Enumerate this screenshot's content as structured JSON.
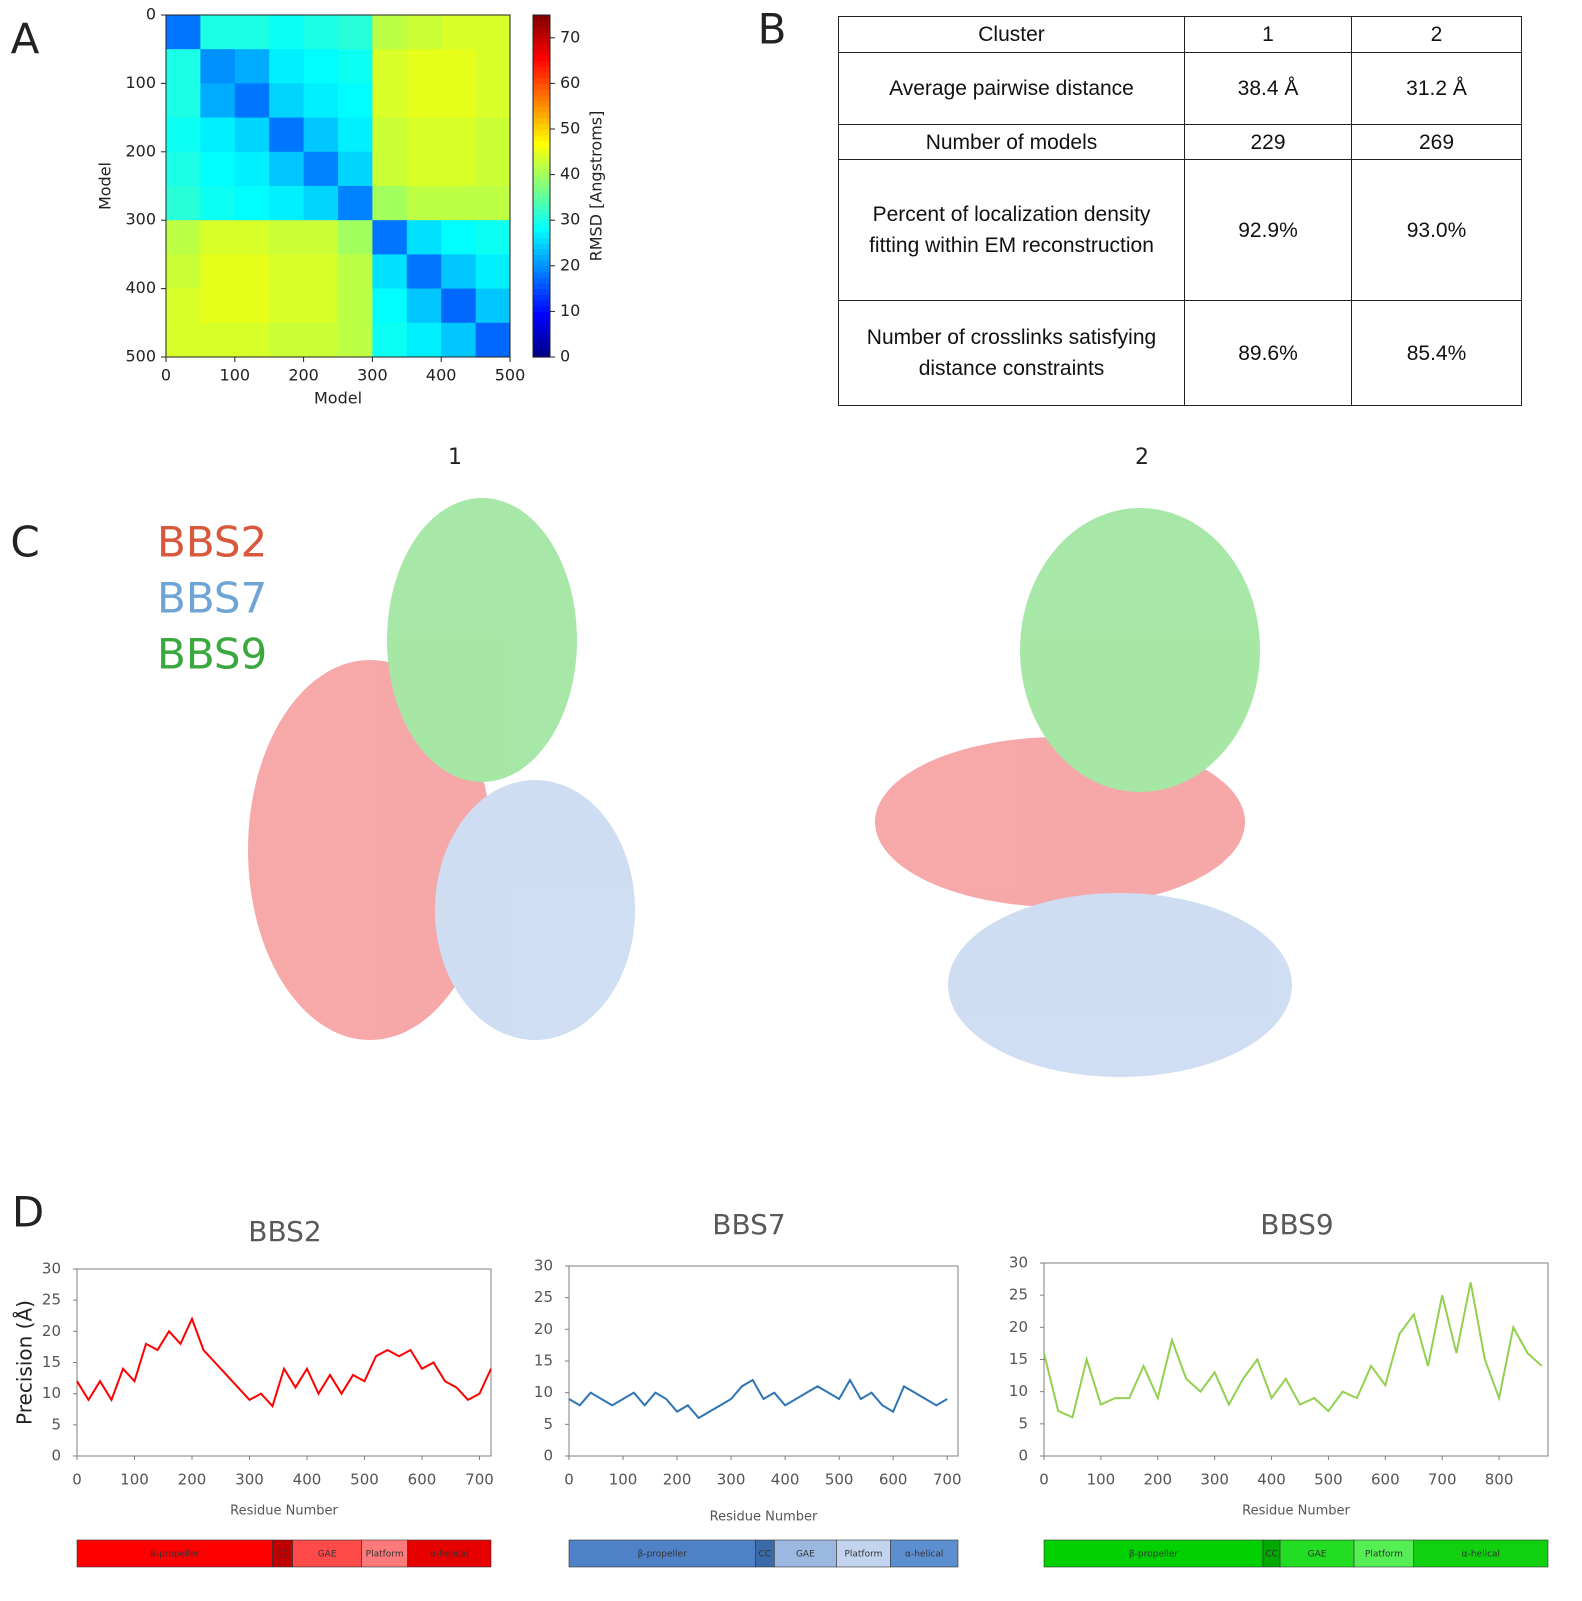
{
  "panel_labels": [
    "A",
    "B",
    "C",
    "D"
  ],
  "chart_data": [
    {
      "type": "heatmap",
      "xlabel": "Model",
      "ylabel": "Model",
      "xlim": [
        0,
        500
      ],
      "ylim": [
        0,
        500
      ],
      "xticks": [
        0,
        100,
        200,
        300,
        400,
        500
      ],
      "yticks": [
        0,
        100,
        200,
        300,
        400,
        500
      ],
      "colormap": "jet",
      "colorbar": {
        "label": "RMSD [Angstroms]",
        "lim": [
          0,
          75
        ],
        "ticks": [
          0,
          10,
          20,
          30,
          40,
          50,
          60,
          70
        ]
      },
      "z": [
        [
          18,
          30,
          30,
          29,
          30,
          31,
          42,
          43,
          44,
          44
        ],
        [
          30,
          20,
          22,
          27,
          28,
          29,
          44,
          45,
          45,
          44
        ],
        [
          30,
          22,
          18,
          25,
          27,
          28,
          44,
          45,
          45,
          44
        ],
        [
          29,
          27,
          25,
          18,
          24,
          27,
          43,
          44,
          44,
          43
        ],
        [
          30,
          28,
          27,
          24,
          19,
          25,
          43,
          44,
          44,
          43
        ],
        [
          31,
          29,
          28,
          27,
          25,
          19,
          40,
          42,
          42,
          42
        ],
        [
          42,
          44,
          44,
          43,
          43,
          40,
          18,
          26,
          28,
          29
        ],
        [
          43,
          45,
          45,
          44,
          44,
          42,
          26,
          18,
          24,
          27
        ],
        [
          44,
          45,
          45,
          44,
          44,
          42,
          28,
          24,
          17,
          24
        ],
        [
          44,
          44,
          44,
          43,
          43,
          42,
          29,
          27,
          24,
          17
        ]
      ]
    },
    {
      "type": "line",
      "title": "BBS2",
      "ylabel": "Precision (Å)",
      "xlabel": "Residue Number",
      "color": "#ff0000",
      "xlim": [
        0,
        720
      ],
      "ylim": [
        0,
        30
      ],
      "xticks": [
        0,
        100,
        200,
        300,
        400,
        500,
        600,
        700
      ],
      "yticks": [
        0,
        5,
        10,
        15,
        20,
        25,
        30
      ],
      "x": [
        0,
        20,
        40,
        60,
        80,
        100,
        120,
        140,
        160,
        180,
        200,
        220,
        240,
        260,
        280,
        300,
        320,
        340,
        360,
        380,
        400,
        420,
        440,
        460,
        480,
        500,
        520,
        540,
        560,
        580,
        600,
        620,
        640,
        660,
        680,
        700,
        720
      ],
      "values": [
        12,
        9,
        12,
        9,
        14,
        12,
        18,
        17,
        20,
        18,
        22,
        17,
        15,
        13,
        11,
        9,
        10,
        8,
        14,
        11,
        14,
        10,
        13,
        10,
        13,
        12,
        16,
        17,
        16,
        17,
        14,
        15,
        12,
        11,
        9,
        10,
        14
      ],
      "domains": [
        {
          "name": "β-propeller",
          "start": 0,
          "end": 340,
          "color": "#ff0000"
        },
        {
          "name": "CC",
          "start": 340,
          "end": 375,
          "color": "#c00000"
        },
        {
          "name": "GAE",
          "start": 375,
          "end": 495,
          "color": "#ff4a4a"
        },
        {
          "name": "Platform",
          "start": 495,
          "end": 575,
          "color": "#ff7a7a"
        },
        {
          "name": "α-helical",
          "start": 575,
          "end": 720,
          "color": "#e60000"
        }
      ]
    },
    {
      "type": "line",
      "title": "BBS7",
      "xlabel": "Residue Number",
      "color": "#2e75b6",
      "xlim": [
        0,
        720
      ],
      "ylim": [
        0,
        30
      ],
      "xticks": [
        0,
        100,
        200,
        300,
        400,
        500,
        600,
        700
      ],
      "yticks": [
        0,
        5,
        10,
        15,
        20,
        25,
        30
      ],
      "x": [
        0,
        20,
        40,
        60,
        80,
        100,
        120,
        140,
        160,
        180,
        200,
        220,
        240,
        260,
        280,
        300,
        320,
        340,
        360,
        380,
        400,
        420,
        440,
        460,
        480,
        500,
        520,
        540,
        560,
        580,
        600,
        620,
        640,
        660,
        680,
        700
      ],
      "values": [
        9,
        8,
        10,
        9,
        8,
        9,
        10,
        8,
        10,
        9,
        7,
        8,
        6,
        7,
        8,
        9,
        11,
        12,
        9,
        10,
        8,
        9,
        10,
        11,
        10,
        9,
        12,
        9,
        10,
        8,
        7,
        11,
        10,
        9,
        8,
        9
      ],
      "domains": [
        {
          "name": "β-propeller",
          "start": 0,
          "end": 345,
          "color": "#4f81c7"
        },
        {
          "name": "CC",
          "start": 345,
          "end": 380,
          "color": "#3a6aa8"
        },
        {
          "name": "GAE",
          "start": 380,
          "end": 495,
          "color": "#9ab8e0"
        },
        {
          "name": "Platform",
          "start": 495,
          "end": 595,
          "color": "#c3d5ee"
        },
        {
          "name": "α-helical",
          "start": 595,
          "end": 720,
          "color": "#5b8fd0"
        }
      ]
    },
    {
      "type": "line",
      "title": "BBS9",
      "xlabel": "Residue Number",
      "color": "#92d050",
      "xlim": [
        0,
        886
      ],
      "ylim": [
        0,
        30
      ],
      "xticks": [
        0,
        100,
        200,
        300,
        400,
        500,
        600,
        700,
        800
      ],
      "yticks": [
        0,
        5,
        10,
        15,
        20,
        25,
        30
      ],
      "x": [
        0,
        25,
        50,
        75,
        100,
        125,
        150,
        175,
        200,
        225,
        250,
        275,
        300,
        325,
        350,
        375,
        400,
        425,
        450,
        475,
        500,
        525,
        550,
        575,
        600,
        625,
        650,
        675,
        700,
        725,
        750,
        775,
        800,
        825,
        850,
        875
      ],
      "values": [
        16,
        7,
        6,
        15,
        8,
        9,
        9,
        14,
        9,
        18,
        12,
        10,
        13,
        8,
        12,
        15,
        9,
        12,
        8,
        9,
        7,
        10,
        9,
        14,
        11,
        19,
        22,
        14,
        25,
        16,
        27,
        15,
        9,
        20,
        16,
        14
      ],
      "domains": [
        {
          "name": "β-propeller",
          "start": 0,
          "end": 385,
          "color": "#00d000"
        },
        {
          "name": "CC",
          "start": 385,
          "end": 415,
          "color": "#00a800"
        },
        {
          "name": "GAE",
          "start": 415,
          "end": 545,
          "color": "#22dd22"
        },
        {
          "name": "Platform",
          "start": 545,
          "end": 650,
          "color": "#55ee55"
        },
        {
          "name": "α-helical",
          "start": 650,
          "end": 886,
          "color": "#10d010"
        }
      ]
    }
  ],
  "table": {
    "header": [
      "Cluster",
      "1",
      "2"
    ],
    "rows": [
      [
        "Average pairwise distance",
        "38.4 Å",
        "31.2 Å"
      ],
      [
        "Number of models",
        "229",
        "269"
      ],
      [
        "Percent of localization density fitting within EM reconstruction",
        "92.9%",
        "93.0%"
      ],
      [
        "Number of crosslinks satisfying distance constraints",
        "89.6%",
        "85.4%"
      ]
    ]
  },
  "structures": {
    "titles": [
      "1",
      "2"
    ],
    "legend": [
      {
        "name": "BBS2",
        "color": "#d9583b"
      },
      {
        "name": "BBS7",
        "color": "#6fa4d6"
      },
      {
        "name": "BBS9",
        "color": "#3aa83c"
      }
    ]
  }
}
